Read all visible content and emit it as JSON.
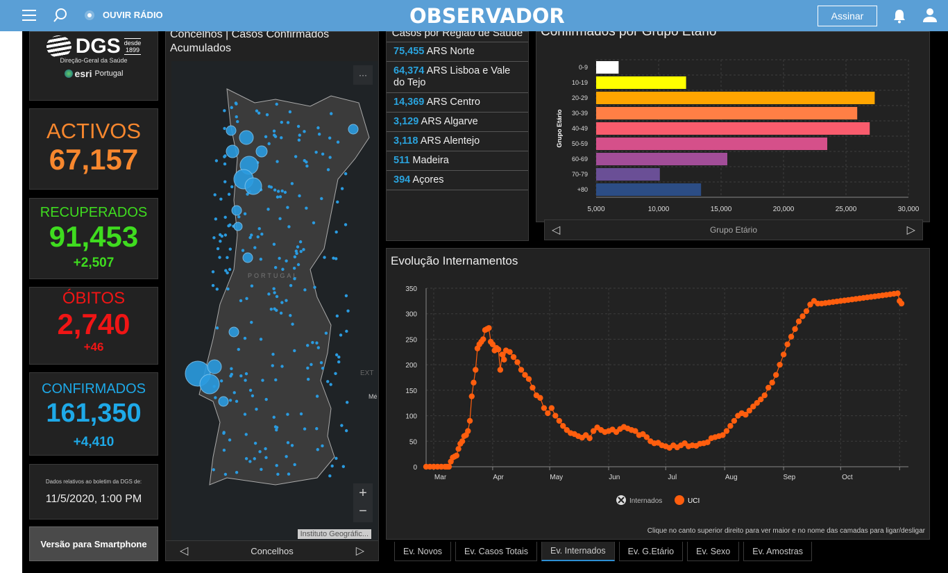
{
  "topbar": {
    "radio_label": "OUVIR RÁDIO",
    "logo": "OBSERVADOR",
    "subscribe_label": "Assinar"
  },
  "brand": {
    "dgs_name": "DGS",
    "dgs_since_1": "desde",
    "dgs_since_2": "1899",
    "dgs_sub": "Direção-Geral da Saúde",
    "esri_name": "esri",
    "esri_region": "Portugal"
  },
  "stats": {
    "active": {
      "label": "ACTIVOS",
      "value": "67,157",
      "color": "#f7872e"
    },
    "recovered": {
      "label": "RECUPERADOS",
      "value": "91,453",
      "delta": "+2,507",
      "color": "#3fdc1f"
    },
    "deaths": {
      "label": "ÓBITOS",
      "value": "2,740",
      "delta": "+46",
      "color": "#f01515"
    },
    "confirmed": {
      "label": "CONFIRMADOS",
      "value": "161,350",
      "delta": "+4,410",
      "color": "#1ea9e8"
    }
  },
  "bulletin": {
    "caption": "Dados relativos ao boletim da DGS de:",
    "date": "11/5/2020, 1:00 PM"
  },
  "mobile_button": "Versão para Smartphone",
  "map": {
    "title": "Concelhos | Casos Confirmados Acumulados",
    "country_label": "PORTUGAL",
    "region_label_1": "EXT",
    "region_label_2": "Mé",
    "attribution": "Instituto Geográfic...",
    "zoom_in": "+",
    "zoom_out": "−",
    "more": "···",
    "footer": "Concelhos"
  },
  "regions": {
    "title": "Casos por Região de Saúde",
    "items": [
      {
        "count": "75,455",
        "name": "ARS Norte"
      },
      {
        "count": "64,374",
        "name": "ARS Lisboa e Vale do Tejo"
      },
      {
        "count": "14,369",
        "name": "ARS Centro"
      },
      {
        "count": "3,129",
        "name": "ARS Algarve"
      },
      {
        "count": "3,118",
        "name": "ARS Alentejo"
      },
      {
        "count": "511",
        "name": "Madeira"
      },
      {
        "count": "394",
        "name": "Açores"
      }
    ]
  },
  "age_panel": {
    "title": "Confirmados por Grupo Etário",
    "footer": "Grupo Etário"
  },
  "internamentos": {
    "title": "Evolução Internamentos",
    "hint": "Clique no canto superior direito para ver maior e no nome das camadas para ligar/desligar"
  },
  "tabs": [
    {
      "label": "Ev. Novos",
      "active": false
    },
    {
      "label": "Ev. Casos Totais",
      "active": false
    },
    {
      "label": "Ev. Internados",
      "active": true
    },
    {
      "label": "Ev. G.Etário",
      "active": false
    },
    {
      "label": "Ev. Sexo",
      "active": false
    },
    {
      "label": "Ev. Amostras",
      "active": false
    }
  ],
  "chart_data": [
    {
      "type": "bar",
      "orientation": "horizontal",
      "title": "Confirmados por Grupo Etário",
      "ylabel": "Grupo Etário",
      "xlabel": "",
      "categories": [
        "0-9",
        "10-19",
        "20-29",
        "30-39",
        "40-49",
        "50-59",
        "60-69",
        "70-79",
        "+80"
      ],
      "values": [
        6800,
        12200,
        27300,
        25900,
        26900,
        23500,
        15500,
        10100,
        13400
      ],
      "colors": [
        "#ffffff",
        "#ffff00",
        "#ffa500",
        "#ff7f45",
        "#f95c6d",
        "#d5508a",
        "#a24d98",
        "#6a4f96",
        "#2c4d85"
      ],
      "xlim": [
        5000,
        30000
      ],
      "xticks": [
        "5,000",
        "10,000",
        "15,000",
        "20,000",
        "25,000",
        "30,000"
      ],
      "grid": true
    },
    {
      "type": "line",
      "title": "Evolução Internamentos",
      "xlabel": "",
      "ylabel": "",
      "ylim": [
        0,
        350
      ],
      "yticks": [
        0,
        50,
        100,
        150,
        200,
        250,
        300,
        350
      ],
      "xticks": [
        "Mar",
        "Apr",
        "May",
        "Jun",
        "Jul",
        "Aug",
        "Sep",
        "Oct"
      ],
      "legend": [
        {
          "name": "Internados",
          "visible": false
        },
        {
          "name": "UCI",
          "visible": true,
          "color": "#ff5e0e"
        }
      ],
      "legend_position": "bottom",
      "grid": true,
      "series": [
        {
          "name": "UCI",
          "x_days_since_feb26": [
            0,
            2,
            4,
            6,
            8,
            10,
            11,
            12,
            13,
            14,
            15,
            16,
            17,
            18,
            19,
            20,
            21,
            22,
            23,
            24,
            25,
            26,
            27,
            28,
            29,
            30,
            31,
            32,
            33,
            34,
            35,
            36,
            37,
            38,
            39,
            40,
            41,
            42,
            44,
            46,
            48,
            50,
            52,
            54,
            56,
            58,
            60,
            62,
            64,
            66,
            68,
            70,
            72,
            74,
            76,
            78,
            80,
            82,
            84,
            86,
            88,
            90,
            92,
            94,
            96,
            98,
            100,
            102,
            104,
            106,
            108,
            110,
            112,
            114,
            116,
            118,
            120,
            122,
            124,
            126,
            128,
            130,
            132,
            134,
            136,
            138,
            140,
            142,
            144,
            146,
            148,
            150,
            152,
            154,
            156,
            158,
            160,
            162,
            164,
            166,
            168,
            170,
            172,
            174,
            176,
            178,
            180,
            182,
            184,
            186,
            188,
            190,
            192,
            194,
            196,
            198,
            200,
            202,
            204,
            206,
            208,
            210,
            212,
            214,
            216,
            218,
            220,
            222,
            224,
            226,
            228,
            230,
            232,
            234,
            236,
            238,
            240,
            242,
            244,
            246,
            248,
            249,
            250
          ],
          "values": [
            0,
            0,
            0,
            0,
            0,
            0,
            0,
            0,
            10,
            18,
            20,
            22,
            35,
            45,
            50,
            60,
            62,
            70,
            90,
            138,
            165,
            190,
            232,
            240,
            245,
            250,
            268,
            270,
            272,
            245,
            240,
            228,
            233,
            230,
            190,
            220,
            210,
            228,
            225,
            215,
            205,
            190,
            180,
            172,
            155,
            140,
            135,
            115,
            105,
            115,
            100,
            90,
            80,
            72,
            66,
            64,
            60,
            57,
            62,
            56,
            70,
            77,
            72,
            68,
            70,
            73,
            68,
            74,
            78,
            75,
            72,
            70,
            62,
            64,
            58,
            50,
            46,
            47,
            42,
            40,
            37,
            42,
            38,
            42,
            46,
            40,
            42,
            41,
            45,
            46,
            48,
            56,
            58,
            60,
            62,
            70,
            80,
            90,
            100,
            105,
            102,
            110,
            118,
            125,
            132,
            140,
            155,
            165,
            180,
            200,
            220,
            240,
            255,
            270,
            285,
            295,
            305,
            318,
            325,
            320,
            320,
            321,
            322,
            323,
            324,
            325,
            326,
            327,
            328,
            329,
            330,
            331,
            332,
            333,
            334,
            335,
            336,
            337,
            338,
            339,
            340,
            325,
            320
          ]
        }
      ]
    }
  ]
}
